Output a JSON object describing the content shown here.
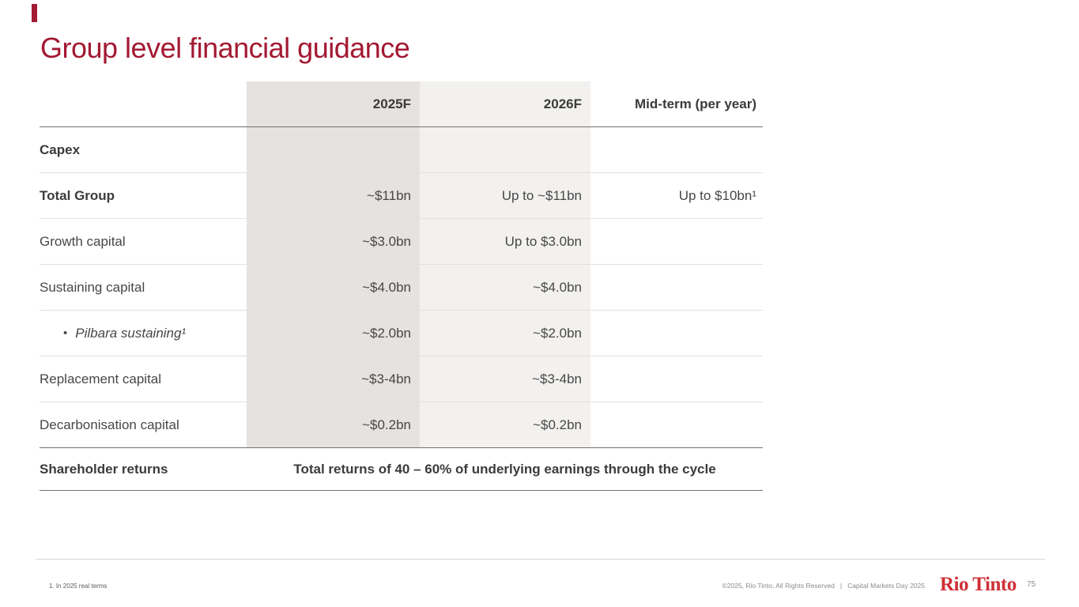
{
  "title": "Group level financial guidance",
  "table": {
    "header": {
      "col_2025": "2025F",
      "col_2026": "2026F",
      "col_mid": "Mid-term (per year)"
    },
    "rows": [
      {
        "label": "Capex",
        "v2025": "",
        "v2026": "",
        "mid": ""
      },
      {
        "label": "Total Group",
        "v2025": "~$11bn",
        "v2026": "Up to ~$11bn",
        "mid": "Up to $10bn¹"
      },
      {
        "label": "Growth capital",
        "v2025": "~$3.0bn",
        "v2026": "Up to $3.0bn",
        "mid": ""
      },
      {
        "label": "Sustaining capital",
        "v2025": "~$4.0bn",
        "v2026": "~$4.0bn",
        "mid": ""
      },
      {
        "label": "Pilbara sustaining¹",
        "bullet": "•",
        "v2025": "~$2.0bn",
        "v2026": "~$2.0bn",
        "mid": ""
      },
      {
        "label": "Replacement capital",
        "v2025": "~$3-4bn",
        "v2026": "~$3-4bn",
        "mid": ""
      },
      {
        "label": "Decarbonisation capital",
        "v2025": "~$0.2bn",
        "v2026": "~$0.2bn",
        "mid": ""
      }
    ],
    "shareholder_row": {
      "label": "Shareholder returns",
      "value": "Total returns of 40 – 60% of underlying earnings through the cycle"
    }
  },
  "footer": {
    "footnote": "1. In 2025 real terms",
    "copyright": "©2025, Rio Tinto, All Rights Reserved   |   Capital Markets Day 2025",
    "logo": "Rio Tinto",
    "page_number": "75"
  },
  "colors": {
    "title_red": "#A31932",
    "logo_red": "#CE2F36",
    "col_2025_bg": "#E5E2E0",
    "col_2026_bg": "#F2F1EF",
    "dark_rule": "#74706D",
    "light_rule": "#E4E1DE"
  }
}
